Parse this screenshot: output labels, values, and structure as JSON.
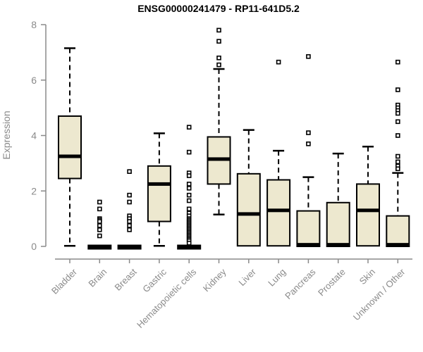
{
  "chart_data": {
    "type": "boxplot",
    "title": "ENSG00000241479 - RP11-641D5.2",
    "ylabel": "Expression",
    "xlabel": "",
    "ylim": [
      0,
      8
    ],
    "yticks": [
      0,
      2,
      4,
      6,
      8
    ],
    "grid": false,
    "legend": false,
    "box_fill_color": "#ede8cf",
    "box_border_color": "#000000",
    "median_color": "#000000",
    "axis_color": "#8a8a8a",
    "categories": [
      "Bladder",
      "Brain",
      "Breast",
      "Gastric",
      "Hematopoietic cells",
      "Kidney",
      "Liver",
      "Lung",
      "Pancreas",
      "Prostate",
      "Skin",
      "Unknown / Other"
    ],
    "series": [
      {
        "category": "Bladder",
        "whisker_low": 0.02,
        "q1": 2.45,
        "median": 3.25,
        "q3": 4.7,
        "whisker_high": 7.15,
        "outliers": []
      },
      {
        "category": "Brain",
        "whisker_low": 0,
        "q1": 0,
        "median": 0,
        "q3": 0,
        "whisker_high": 0,
        "outliers": [
          1.6,
          1.35,
          1.0,
          0.95,
          0.9,
          0.75,
          0.6,
          0.38
        ]
      },
      {
        "category": "Breast",
        "whisker_low": 0,
        "q1": 0,
        "median": 0,
        "q3": 0,
        "whisker_high": 0,
        "outliers": [
          2.7,
          1.85,
          1.6,
          1.1,
          1.0,
          0.9,
          0.75,
          0.6
        ]
      },
      {
        "category": "Gastric",
        "whisker_low": 0.02,
        "q1": 0.9,
        "median": 2.25,
        "q3": 2.9,
        "whisker_high": 4.08,
        "outliers": []
      },
      {
        "category": "Hematopoietic cells",
        "whisker_low": 0,
        "q1": 0,
        "median": 0,
        "q3": 0,
        "whisker_high": 0,
        "outliers": [
          4.3,
          3.4,
          2.65,
          2.55,
          2.25,
          2.1,
          1.85,
          1.65,
          1.35,
          1.2,
          1.1,
          1.0,
          0.95,
          0.9,
          0.85,
          0.8,
          0.75,
          0.7,
          0.65,
          0.6,
          0.55,
          0.5,
          0.45,
          0.4,
          0.35,
          0.3,
          0.25,
          0.2,
          0.12
        ]
      },
      {
        "category": "Kidney",
        "whisker_low": 1.15,
        "q1": 2.25,
        "median": 3.15,
        "q3": 3.95,
        "whisker_high": 6.4,
        "outliers": [
          7.8,
          7.4,
          6.8,
          6.55
        ]
      },
      {
        "category": "Liver",
        "whisker_low": 0.02,
        "q1": 0.02,
        "median": 1.17,
        "q3": 2.62,
        "whisker_high": 4.2,
        "outliers": []
      },
      {
        "category": "Lung",
        "whisker_low": 0.02,
        "q1": 0.02,
        "median": 1.3,
        "q3": 2.4,
        "whisker_high": 3.45,
        "outliers": [
          6.65
        ]
      },
      {
        "category": "Pancreas",
        "whisker_low": 0,
        "q1": 0,
        "median": 0.06,
        "q3": 1.28,
        "whisker_high": 2.5,
        "outliers": [
          6.85,
          4.1,
          3.7
        ]
      },
      {
        "category": "Prostate",
        "whisker_low": 0,
        "q1": 0,
        "median": 0.06,
        "q3": 1.58,
        "whisker_high": 3.35,
        "outliers": []
      },
      {
        "category": "Skin",
        "whisker_low": 0.02,
        "q1": 0.02,
        "median": 1.3,
        "q3": 2.25,
        "whisker_high": 3.6,
        "outliers": []
      },
      {
        "category": "Unknown / Other",
        "whisker_low": 0,
        "q1": 0,
        "median": 0.06,
        "q3": 1.1,
        "whisker_high": 2.65,
        "outliers": [
          6.65,
          5.65,
          5.1,
          5.0,
          4.9,
          4.8,
          4.5,
          4.0,
          3.25,
          3.05,
          2.9,
          2.8
        ]
      }
    ]
  }
}
